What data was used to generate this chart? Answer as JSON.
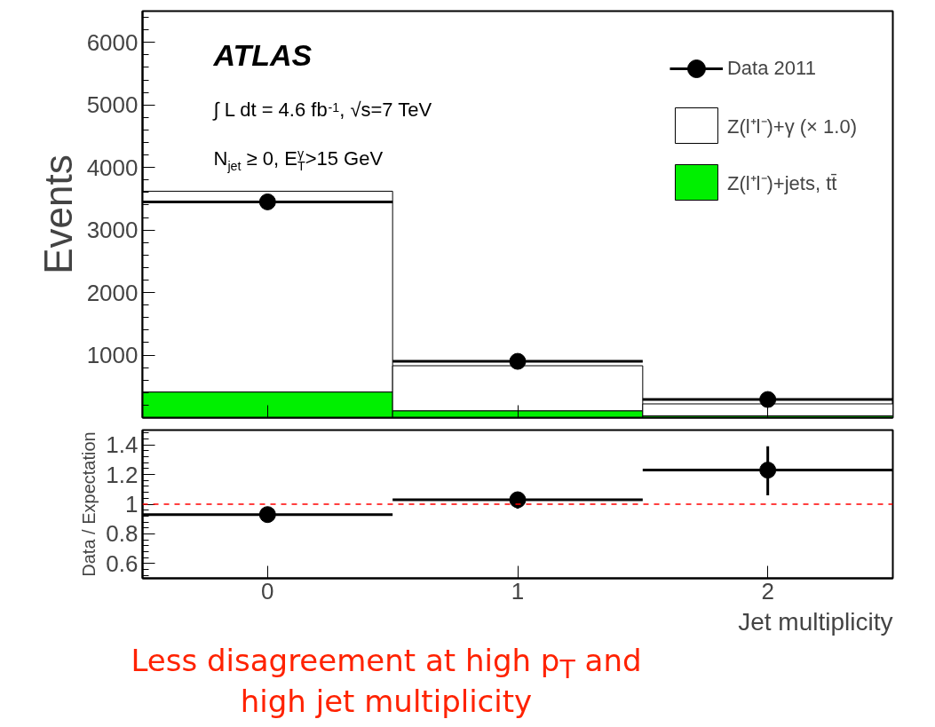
{
  "chart_data": [
    {
      "type": "bar",
      "stacked": true,
      "ylabel": "Events",
      "x": [
        0,
        1,
        2
      ],
      "xlim": [
        -0.5,
        2.5
      ],
      "xticks": [
        0,
        1,
        2
      ],
      "ylim": [
        0,
        6500
      ],
      "yticks": [
        1000,
        2000,
        3000,
        4000,
        5000,
        6000
      ],
      "tick_labels": "y",
      "grid": false,
      "legend": "top right",
      "annotations": [
        "ATLAS",
        "∫ L dt = 4.6 fb$^{-1}$, √s=7 TeV",
        "N$_{jet}$ ≥ 0, E$_{T}$$^{γ}$>15 GeV"
      ],
      "series": [
        {
          "name": "Z(l⁺l⁻)+jets, tt̄",
          "color": "#00f000",
          "values": [
            410,
            110,
            30
          ]
        },
        {
          "name": "Z(l⁺l⁻)+γ (× 1.0)",
          "color": "#ffffff",
          "values": [
            3210,
            720,
            190
          ]
        },
        {
          "name": "Data 2011",
          "type": "scatter",
          "marker": "circle",
          "color": "#000000",
          "values": [
            3450,
            900,
            290
          ],
          "xerrors": [
            0.5,
            0.5,
            0.5
          ]
        }
      ]
    },
    {
      "type": "scatter",
      "marker": "circle",
      "ylabel": "Data / Expectation",
      "xlabel": "Jet multiplicity",
      "x": [
        0,
        1,
        2
      ],
      "xlim": [
        -0.5,
        2.5
      ],
      "xticks": [
        0,
        1,
        2
      ],
      "ylim": [
        0.5,
        1.5
      ],
      "yticks": [
        0.6,
        0.8,
        {
          "value": 1,
          "label": "1"
        },
        1.2,
        1.4
      ],
      "grid": false,
      "ref_lines": [
        {
          "axis": "y",
          "value": 1,
          "color": "#ff0000",
          "line_style": "dashed"
        }
      ],
      "annotations": [
        "Less disagreement at high p$_{T}$ and high jet multiplicity"
      ],
      "series": [
        {
          "color": "#000000",
          "values": [
            0.93,
            1.03,
            1.23
          ],
          "xerrors": [
            0.5,
            0.5,
            0.5
          ],
          "errors": [
            null,
            [
              0.97,
              1.08
            ],
            [
              1.06,
              1.39
            ]
          ]
        }
      ]
    }
  ]
}
